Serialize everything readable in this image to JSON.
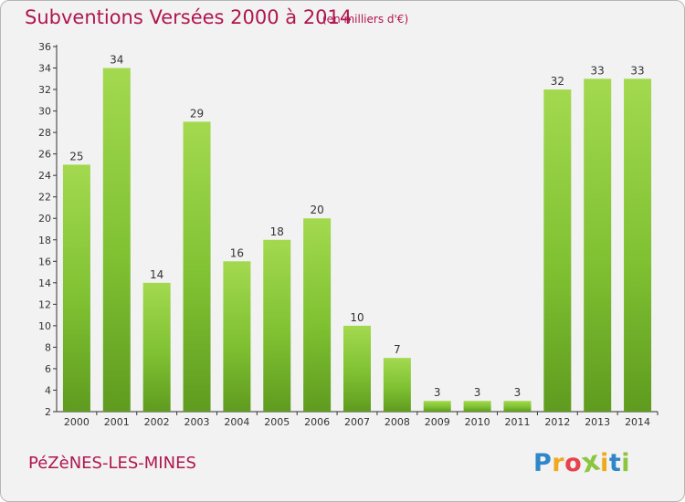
{
  "title": "Subventions Versées 2000 à 2014",
  "subtitle": "(en milliers d'€)",
  "commune": "PéZèNES-LES-MINES",
  "logo": {
    "letters": [
      "P",
      "r",
      "o",
      "x",
      "i",
      "t",
      "i"
    ],
    "colors": [
      "#2f86c8",
      "#f0a81c",
      "#e8424d",
      "#8cc63f",
      "#f0a81c",
      "#2f86c8",
      "#8cc63f"
    ]
  },
  "colors": {
    "bar": "#7fc132",
    "bar_light": "#a3d94f",
    "bar_dark": "#5f9b1f",
    "title": "#b0164f"
  },
  "chart_data": {
    "type": "bar",
    "title": "Subventions Versées 2000 à 2014",
    "subtitle": "(en milliers d'€)",
    "xlabel": "",
    "ylabel": "",
    "categories": [
      "2000",
      "2001",
      "2002",
      "2003",
      "2004",
      "2005",
      "2006",
      "2007",
      "2008",
      "2009",
      "2010",
      "2011",
      "2012",
      "2013",
      "2014"
    ],
    "values": [
      25,
      34,
      14,
      29,
      16,
      18,
      20,
      10,
      7,
      3,
      3,
      3,
      32,
      33,
      33
    ],
    "ylim": [
      2,
      36
    ],
    "yticks": [
      2,
      4,
      6,
      8,
      10,
      12,
      14,
      16,
      18,
      20,
      22,
      24,
      26,
      28,
      30,
      32,
      34,
      36
    ],
    "grid": false,
    "legend": "none"
  }
}
